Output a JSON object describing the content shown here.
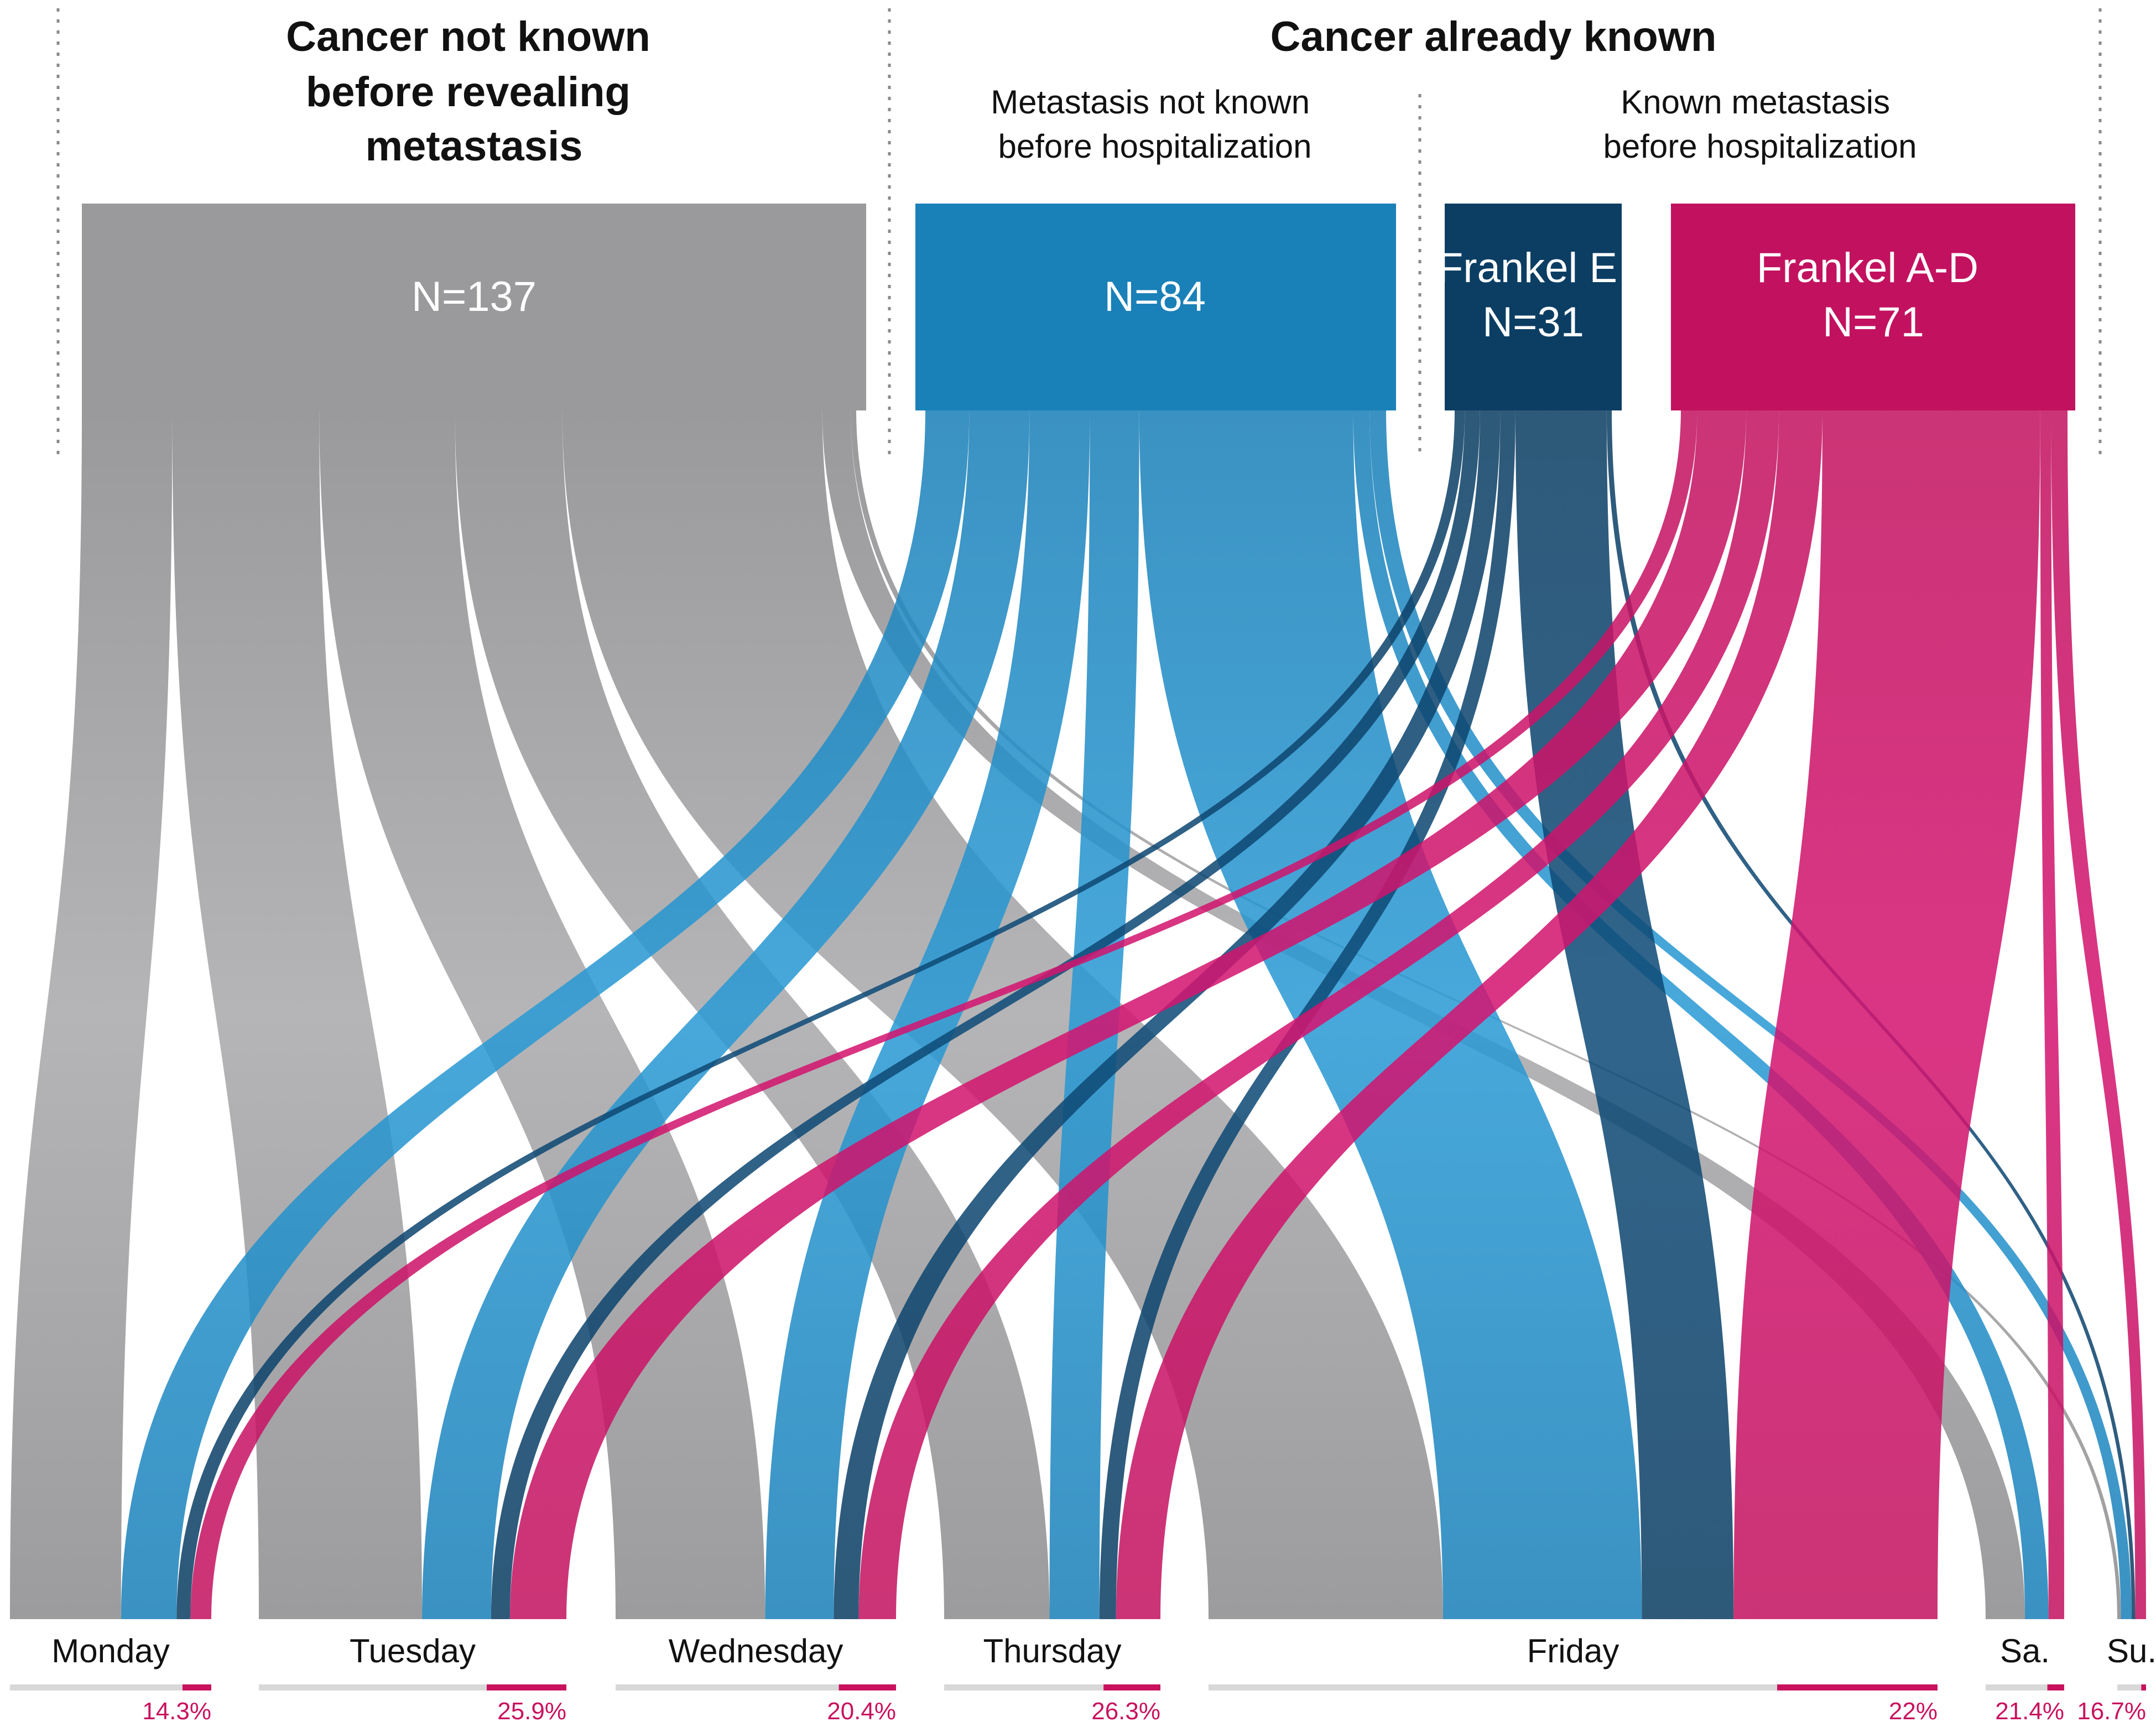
{
  "chart_data": {
    "type": "sankey",
    "title_groups": [
      {
        "key": "nk",
        "lines": [
          "Cancer not known",
          "before revealing",
          "metastasis"
        ]
      },
      {
        "key": "ak",
        "lines": [
          "Cancer already known"
        ]
      }
    ],
    "subgroups": [
      {
        "key": "mnk",
        "lines": [
          "Metastasis not known",
          "before hospitalization"
        ]
      },
      {
        "key": "km",
        "lines": [
          "Known metastasis",
          "before hospitalization"
        ]
      }
    ],
    "sources": [
      {
        "key": "gray",
        "label": "N=137",
        "n": 137,
        "color": "#a3a3a5"
      },
      {
        "key": "blue",
        "label": "N=84",
        "n": 84,
        "color": "#2a95cf"
      },
      {
        "key": "navy",
        "label": "Frankel E",
        "n_label": "N=31",
        "n": 31,
        "color": "#0d4771"
      },
      {
        "key": "pink",
        "label": "Frankel A-D",
        "n_label": "N=71",
        "n": 71,
        "color": "#cf1467"
      }
    ],
    "days": [
      "Monday",
      "Tuesday",
      "Wednesday",
      "Thursday",
      "Friday",
      "Sa.",
      "Su."
    ],
    "flows": {
      "gray": [
        16,
        26,
        24,
        19,
        46,
        5,
        1
      ],
      "blue": [
        8,
        11,
        11,
        9,
        39,
        3,
        3
      ],
      "navy": [
        2,
        3,
        4,
        3,
        18,
        0,
        1
      ],
      "pink": [
        3,
        9,
        6,
        8,
        40,
        2,
        3
      ]
    },
    "pink_share_pct": [
      "14.3%",
      "25.9%",
      "20.4%",
      "26.3%",
      "22%",
      "21.4%",
      "16.7%"
    ],
    "pink_share": [
      14.3,
      25.9,
      20.4,
      26.3,
      22,
      21.4,
      16.7
    ]
  }
}
